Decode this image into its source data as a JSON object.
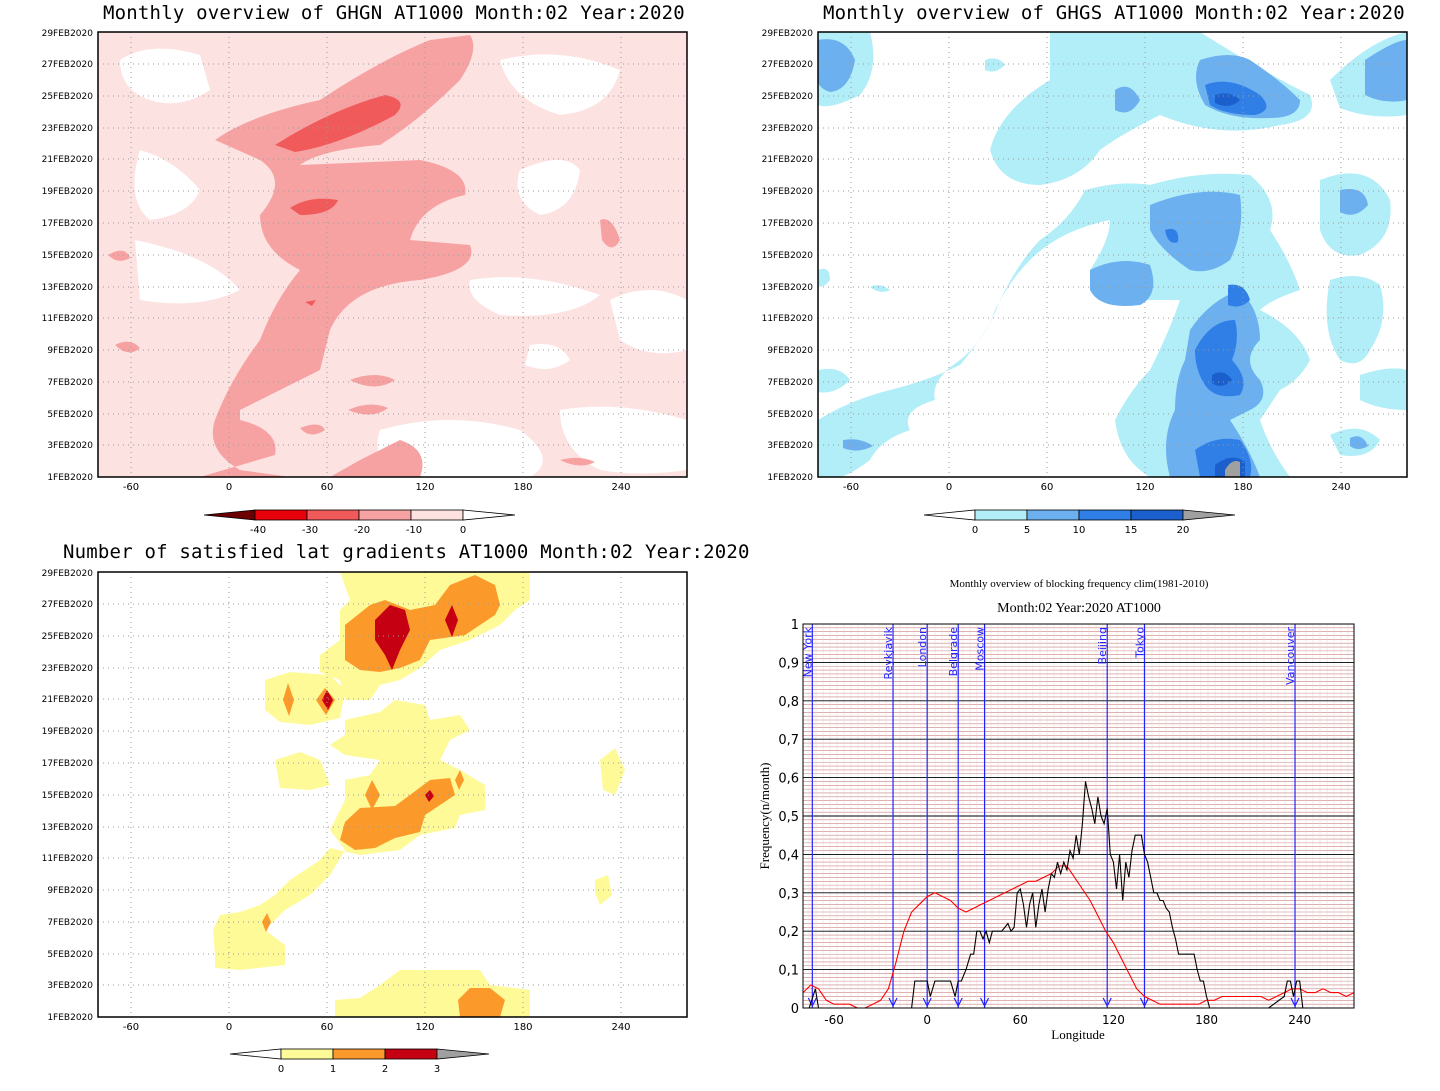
{
  "panels": {
    "top_left_title": "Monthly overview of GHGN AT1000 Month:02 Year:2020",
    "top_right_title": "Monthly overview of GHGS AT1000 Month:02 Year:2020",
    "bottom_left_title": "Number of satisfied lat gradients AT1000 Month:02 Year:2020"
  },
  "shared": {
    "date_ticks": [
      "29FEB2020",
      "27FEB2020",
      "25FEB2020",
      "23FEB2020",
      "21FEB2020",
      "19FEB2020",
      "17FEB2020",
      "15FEB2020",
      "13FEB2020",
      "11FEB2020",
      "9FEB2020",
      "7FEB2020",
      "5FEB2020",
      "3FEB2020",
      "1FEB2020"
    ],
    "lon_ticks": [
      "-60",
      "0",
      "60",
      "120",
      "180",
      "240"
    ]
  },
  "chart_data": [
    {
      "type": "heatmap",
      "title": "Monthly overview of GHGN AT1000 Month:02 Year:2020",
      "x_range": [
        -80,
        275
      ],
      "y_range": [
        "1FEB2020",
        "29FEB2020"
      ],
      "colorbar_labels": [
        "-40",
        "-30",
        "-20",
        "-10",
        "0"
      ],
      "colorbar_colors": [
        "#6b0000",
        "#e8000a",
        "#f15a5a",
        "#f7a2a2",
        "#fde2e2",
        "#ffffff"
      ]
    },
    {
      "type": "heatmap",
      "title": "Monthly overview of GHGS AT1000 Month:02 Year:2020",
      "x_range": [
        -80,
        275
      ],
      "y_range": [
        "1FEB2020",
        "29FEB2020"
      ],
      "colorbar_labels": [
        "0",
        "5",
        "10",
        "15",
        "20"
      ],
      "colorbar_colors": [
        "#ffffff",
        "#b2eef8",
        "#6cb0f0",
        "#2f7fe6",
        "#1a5fcc",
        "#a0a0a0"
      ]
    },
    {
      "type": "heatmap",
      "title": "Number of satisfied lat gradients AT1000 Month:02 Year:2020",
      "x_range": [
        -80,
        275
      ],
      "y_range": [
        "1FEB2020",
        "29FEB2020"
      ],
      "colorbar_labels": [
        "0",
        "1",
        "2",
        "3"
      ],
      "colorbar_colors": [
        "#ffffff",
        "#fefa98",
        "#fb9a2a",
        "#c40012",
        "#a0a0a0"
      ]
    },
    {
      "type": "line",
      "title": "Monthly overview of blocking frequency clim(1981-2010)",
      "subtitle": "Month:02 Year:2020  AT1000",
      "xlabel": "Longitude",
      "ylabel": "Frequency(n/month)",
      "xlim": [
        -80,
        275
      ],
      "ylim": [
        0,
        1
      ],
      "x_ticks": [
        "-60",
        "0",
        "60",
        "120",
        "180",
        "240"
      ],
      "y_ticks": [
        "0",
        "0,1",
        "0,2",
        "0,3",
        "0,4",
        "0,5",
        "0,6",
        "0,7",
        "0,8",
        "0,9",
        "1"
      ],
      "cities": [
        {
          "name": "New York",
          "lon": -74
        },
        {
          "name": "Reykjavik",
          "lon": -22
        },
        {
          "name": "London",
          "lon": 0
        },
        {
          "name": "Belgrade",
          "lon": 20
        },
        {
          "name": "Moscow",
          "lon": 37
        },
        {
          "name": "Beijing",
          "lon": 116
        },
        {
          "name": "Tokyo",
          "lon": 140
        },
        {
          "name": "Vancouver",
          "lon": 237
        }
      ],
      "series": [
        {
          "color": "#ff0000",
          "x": [
            -80,
            -75,
            -70,
            -65,
            -60,
            -55,
            -50,
            -45,
            -40,
            -35,
            -30,
            -25,
            -20,
            -15,
            -10,
            -5,
            0,
            5,
            10,
            15,
            20,
            25,
            30,
            35,
            40,
            45,
            50,
            55,
            60,
            65,
            70,
            75,
            80,
            85,
            90,
            95,
            100,
            105,
            110,
            115,
            120,
            125,
            130,
            135,
            140,
            145,
            150,
            155,
            160,
            165,
            170,
            175,
            180,
            185,
            190,
            195,
            200,
            205,
            210,
            215,
            220,
            225,
            230,
            235,
            240,
            245,
            250,
            255,
            260,
            265,
            270,
            275
          ],
          "values": [
            0.04,
            0.06,
            0.05,
            0.02,
            0.01,
            0.01,
            0.01,
            0.0,
            0.0,
            0.01,
            0.02,
            0.05,
            0.12,
            0.2,
            0.25,
            0.27,
            0.29,
            0.3,
            0.29,
            0.28,
            0.26,
            0.25,
            0.26,
            0.27,
            0.28,
            0.29,
            0.3,
            0.31,
            0.32,
            0.33,
            0.33,
            0.34,
            0.35,
            0.37,
            0.37,
            0.34,
            0.31,
            0.28,
            0.24,
            0.2,
            0.17,
            0.13,
            0.09,
            0.05,
            0.03,
            0.02,
            0.01,
            0.01,
            0.01,
            0.01,
            0.01,
            0.01,
            0.02,
            0.02,
            0.03,
            0.03,
            0.03,
            0.03,
            0.03,
            0.03,
            0.02,
            0.03,
            0.04,
            0.05,
            0.05,
            0.04,
            0.04,
            0.05,
            0.04,
            0.04,
            0.03,
            0.04
          ]
        },
        {
          "color": "#000000",
          "x": [
            -80,
            -76,
            -72,
            -70,
            -60,
            -50,
            -40,
            -30,
            -25,
            -22,
            -20,
            -18,
            -10,
            -8,
            -5,
            -2,
            0,
            2,
            5,
            10,
            15,
            18,
            20,
            22,
            25,
            28,
            30,
            32,
            34,
            36,
            38,
            40,
            42,
            44,
            46,
            48,
            50,
            52,
            54,
            56,
            58,
            60,
            62,
            64,
            66,
            68,
            70,
            72,
            74,
            76,
            78,
            80,
            82,
            84,
            86,
            88,
            90,
            92,
            94,
            96,
            98,
            100,
            102,
            104,
            106,
            108,
            110,
            112,
            114,
            116,
            118,
            120,
            122,
            124,
            126,
            128,
            130,
            132,
            134,
            136,
            138,
            140,
            142,
            144,
            146,
            148,
            150,
            152,
            154,
            156,
            158,
            160,
            162,
            164,
            166,
            168,
            170,
            172,
            174,
            176,
            178,
            180,
            182,
            184,
            190,
            200,
            210,
            220,
            230,
            232,
            234,
            236,
            238,
            240,
            242
          ],
          "values": [
            0,
            0,
            0.05,
            0,
            0,
            0,
            0,
            0,
            0,
            0,
            0,
            0,
            0,
            0.07,
            0.07,
            0.07,
            0.07,
            0.03,
            0.07,
            0.07,
            0.07,
            0.03,
            0.07,
            0.07,
            0.1,
            0.14,
            0.14,
            0.2,
            0.2,
            0.18,
            0.2,
            0.17,
            0.2,
            0.2,
            0.2,
            0.2,
            0.21,
            0.22,
            0.2,
            0.21,
            0.3,
            0.31,
            0.27,
            0.21,
            0.27,
            0.3,
            0.21,
            0.27,
            0.31,
            0.25,
            0.31,
            0.35,
            0.34,
            0.38,
            0.35,
            0.38,
            0.36,
            0.41,
            0.39,
            0.45,
            0.4,
            0.48,
            0.59,
            0.55,
            0.52,
            0.48,
            0.55,
            0.5,
            0.48,
            0.52,
            0.4,
            0.38,
            0.31,
            0.4,
            0.28,
            0.38,
            0.34,
            0.41,
            0.45,
            0.45,
            0.45,
            0.4,
            0.38,
            0.34,
            0.3,
            0.3,
            0.28,
            0.28,
            0.26,
            0.25,
            0.21,
            0.18,
            0.14,
            0.14,
            0.14,
            0.14,
            0.14,
            0.14,
            0.1,
            0.07,
            0.07,
            0.03,
            0,
            0,
            0,
            0,
            0,
            0,
            0.03,
            0.07,
            0.07,
            0.03,
            0.07,
            0.07,
            0
          ]
        }
      ]
    }
  ]
}
